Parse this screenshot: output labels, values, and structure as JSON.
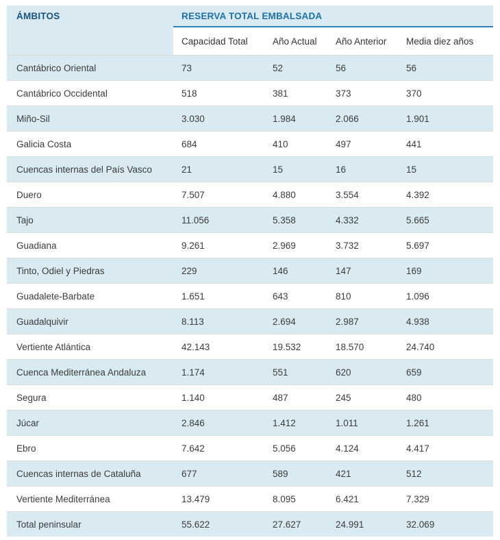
{
  "colors": {
    "header_and_alt_row_bg": "#d9eaf2",
    "corner_header_text": "#155480",
    "group_title_text": "#1c6fa7",
    "group_title_divider": "#2d7cb5",
    "data_text": "#3b3b3b",
    "row_separator": "#dcdcdc",
    "page_bg": "#ffffff"
  },
  "chart_data": {
    "type": "table",
    "title": "RESERVA TOTAL EMBALSADA",
    "corner_header": "ÁMBITOS",
    "columns": [
      "Capacidad Total",
      "Año Actual",
      "Año Anterior",
      "Media diez años"
    ],
    "rows": [
      {
        "name": "Cantábrico Oriental",
        "values": [
          "73",
          "52",
          "56",
          "56"
        ]
      },
      {
        "name": "Cantábrico Occidental",
        "values": [
          "518",
          "381",
          "373",
          "370"
        ]
      },
      {
        "name": "Miño-Sil",
        "values": [
          "3.030",
          "1.984",
          "2.066",
          "1.901"
        ]
      },
      {
        "name": "Galicia Costa",
        "values": [
          "684",
          "410",
          "497",
          "441"
        ]
      },
      {
        "name": "Cuencas internas del País Vasco",
        "values": [
          "21",
          "15",
          "16",
          "15"
        ]
      },
      {
        "name": "Duero",
        "values": [
          "7.507",
          "4.880",
          "3.554",
          "4.392"
        ]
      },
      {
        "name": "Tajo",
        "values": [
          "11.056",
          "5.358",
          "4.332",
          "5.665"
        ]
      },
      {
        "name": "Guadiana",
        "values": [
          "9.261",
          "2.969",
          "3.732",
          "5.697"
        ]
      },
      {
        "name": "Tinto, Odiel y Piedras",
        "values": [
          "229",
          "146",
          "147",
          "169"
        ]
      },
      {
        "name": "Guadalete-Barbate",
        "values": [
          "1.651",
          "643",
          "810",
          "1.096"
        ]
      },
      {
        "name": "Guadalquivir",
        "values": [
          "8.113",
          "2.694",
          "2.987",
          "4.938"
        ]
      },
      {
        "name": "Vertiente Atlántica",
        "values": [
          "42.143",
          "19.532",
          "18.570",
          "24.740"
        ]
      },
      {
        "name": "Cuenca Mediterránea Andaluza",
        "values": [
          "1.174",
          "551",
          "620",
          "659"
        ]
      },
      {
        "name": "Segura",
        "values": [
          "1.140",
          "487",
          "245",
          "480"
        ]
      },
      {
        "name": "Júcar",
        "values": [
          "2.846",
          "1.412",
          "1.011",
          "1.261"
        ]
      },
      {
        "name": "Ebro",
        "values": [
          "7.642",
          "5.056",
          "4.124",
          "4.417"
        ]
      },
      {
        "name": "Cuencas internas de Cataluña",
        "values": [
          "677",
          "589",
          "421",
          "512"
        ]
      },
      {
        "name": "Vertiente Mediterránea",
        "values": [
          "13.479",
          "8.095",
          "6.421",
          "7.329"
        ]
      },
      {
        "name": "Total peninsular",
        "values": [
          "55.622",
          "27.627",
          "24.991",
          "32.069"
        ]
      }
    ]
  }
}
